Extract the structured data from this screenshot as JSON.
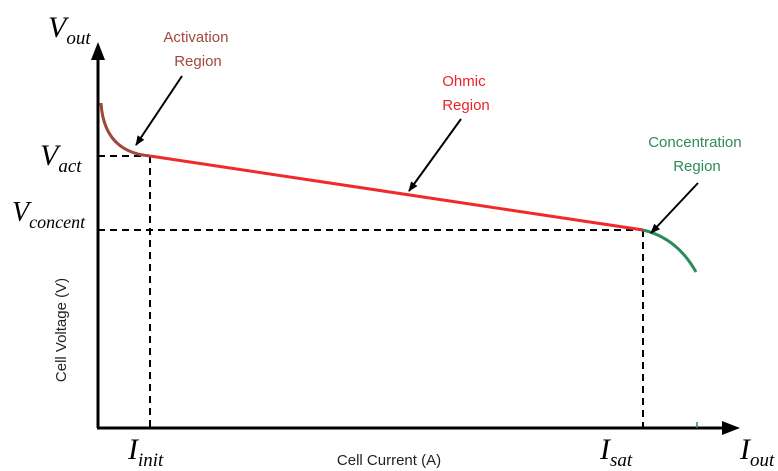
{
  "colors": {
    "activation": "#a0483a",
    "ohmic": "#ee2a2a",
    "concentration": "#2e8b57",
    "axis": "#000000",
    "label_activation": "#a0483a",
    "label_ohmic": "#e8242a",
    "label_concentration": "#2e8b57"
  },
  "axes": {
    "y_symbol": "V",
    "y_sub": "out",
    "x_symbol": "I",
    "x_sub": "out",
    "y_label": "Cell Voltage (V)",
    "x_label": "Cell Current (A)"
  },
  "levels": {
    "v_act_symbol": "V",
    "v_act_sub": "act",
    "v_concent_symbol": "V",
    "v_concent_sub": "concent",
    "i_init_symbol": "I",
    "i_init_sub": "init",
    "i_sat_symbol": "I",
    "i_sat_sub": "sat"
  },
  "regions": {
    "activation_line1": "Activation",
    "activation_line2": "Region",
    "ohmic_line1": "Ohmic",
    "ohmic_line2": "Region",
    "concentration_line1": "Concentration",
    "concentration_line2": "Region"
  }
}
